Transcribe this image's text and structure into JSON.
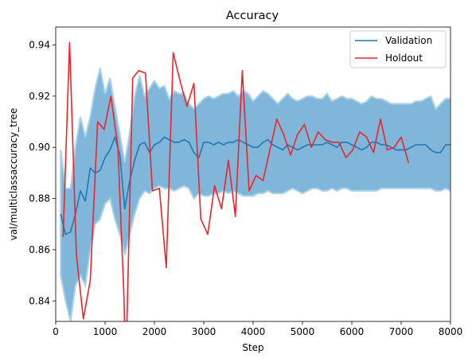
{
  "chart_data": {
    "type": "line",
    "title": "Accuracy",
    "xlabel": "Step",
    "ylabel": "val/multiclassaccuracy_tree",
    "xlim": [
      0,
      8000
    ],
    "ylim": [
      0.832,
      0.947
    ],
    "xticks": [
      0,
      1000,
      2000,
      3000,
      4000,
      5000,
      6000,
      7000,
      8000
    ],
    "xtick_labels": [
      "0",
      "1000",
      "2000",
      "3000",
      "4000",
      "5000",
      "6000",
      "7000",
      "8000"
    ],
    "yticks": [
      0.84,
      0.86,
      0.88,
      0.9,
      0.92,
      0.94
    ],
    "ytick_labels": [
      "0.84",
      "0.86",
      "0.88",
      "0.90",
      "0.92",
      "0.94"
    ],
    "grid": false,
    "legend_position": "top-right",
    "colors": {
      "validation": "#1f77b4",
      "holdout": "#e8262b",
      "band_fill": "#80b6d9",
      "band_edge": "#a9d3e6"
    },
    "band": {
      "x": [
        100,
        200,
        300,
        400,
        500,
        600,
        700,
        800,
        900,
        1000,
        1100,
        1200,
        1300,
        1400,
        1500,
        1600,
        1700,
        1800,
        1900,
        2000,
        2100,
        2200,
        2300,
        2400,
        2500,
        2600,
        2700,
        2800,
        2900,
        3000,
        3100,
        3200,
        3300,
        3400,
        3500,
        3600,
        3700,
        3800,
        3900,
        4000,
        4100,
        4200,
        4300,
        4400,
        4500,
        4600,
        4700,
        4800,
        4900,
        5000,
        5100,
        5200,
        5300,
        5400,
        5500,
        5600,
        5700,
        5800,
        5900,
        6000,
        6100,
        6200,
        6300,
        6400,
        6500,
        6600,
        6700,
        6800,
        6900,
        7000,
        7100,
        7200,
        7300,
        7400,
        7500,
        7600,
        7700,
        7800,
        7900,
        8000
      ],
      "upper": [
        0.899,
        0.884,
        0.884,
        0.9,
        0.912,
        0.904,
        0.912,
        0.923,
        0.931,
        0.921,
        0.927,
        0.916,
        0.905,
        0.894,
        0.906,
        0.92,
        0.928,
        0.92,
        0.923,
        0.926,
        0.923,
        0.924,
        0.919,
        0.922,
        0.921,
        0.921,
        0.917,
        0.915,
        0.917,
        0.919,
        0.92,
        0.919,
        0.92,
        0.921,
        0.921,
        0.922,
        0.92,
        0.922,
        0.921,
        0.918,
        0.92,
        0.922,
        0.921,
        0.919,
        0.917,
        0.919,
        0.921,
        0.919,
        0.918,
        0.919,
        0.92,
        0.92,
        0.919,
        0.919,
        0.921,
        0.918,
        0.919,
        0.92,
        0.919,
        0.919,
        0.918,
        0.917,
        0.918,
        0.92,
        0.919,
        0.919,
        0.918,
        0.917,
        0.917,
        0.917,
        0.917,
        0.917,
        0.918,
        0.918,
        0.919,
        0.92,
        0.915,
        0.917,
        0.919,
        0.919
      ],
      "lower": [
        0.85,
        0.84,
        0.832,
        0.846,
        0.85,
        0.846,
        0.86,
        0.87,
        0.872,
        0.878,
        0.88,
        0.872,
        0.866,
        0.858,
        0.866,
        0.874,
        0.88,
        0.883,
        0.882,
        0.884,
        0.885,
        0.884,
        0.884,
        0.883,
        0.884,
        0.885,
        0.884,
        0.88,
        0.882,
        0.881,
        0.881,
        0.882,
        0.882,
        0.883,
        0.882,
        0.883,
        0.882,
        0.881,
        0.881,
        0.881,
        0.882,
        0.882,
        0.883,
        0.882,
        0.882,
        0.882,
        0.883,
        0.884,
        0.883,
        0.882,
        0.883,
        0.884,
        0.884,
        0.883,
        0.883,
        0.884,
        0.883,
        0.884,
        0.884,
        0.883,
        0.883,
        0.883,
        0.883,
        0.883,
        0.883,
        0.884,
        0.884,
        0.884,
        0.884,
        0.884,
        0.884,
        0.884,
        0.884,
        0.884,
        0.884,
        0.884,
        0.883,
        0.883,
        0.884,
        0.883
      ]
    },
    "series": [
      {
        "name": "Validation",
        "x": [
          100,
          200,
          300,
          400,
          500,
          600,
          700,
          800,
          900,
          1000,
          1100,
          1200,
          1300,
          1400,
          1500,
          1600,
          1700,
          1800,
          1900,
          2000,
          2100,
          2200,
          2300,
          2400,
          2500,
          2600,
          2700,
          2800,
          2900,
          3000,
          3100,
          3200,
          3300,
          3400,
          3500,
          3600,
          3700,
          3800,
          3900,
          4000,
          4100,
          4200,
          4300,
          4400,
          4500,
          4600,
          4700,
          4800,
          4900,
          5000,
          5100,
          5200,
          5300,
          5400,
          5500,
          5600,
          5700,
          5800,
          5900,
          6000,
          6100,
          6200,
          6300,
          6400,
          6500,
          6600,
          6700,
          6800,
          6900,
          7000,
          7100,
          7200,
          7300,
          7400,
          7500,
          7600,
          7700,
          7800,
          7900,
          8000
        ],
        "values": [
          0.874,
          0.866,
          0.867,
          0.874,
          0.883,
          0.879,
          0.892,
          0.89,
          0.891,
          0.896,
          0.899,
          0.904,
          0.897,
          0.876,
          0.887,
          0.895,
          0.901,
          0.902,
          0.898,
          0.901,
          0.902,
          0.904,
          0.903,
          0.902,
          0.902,
          0.903,
          0.902,
          0.898,
          0.896,
          0.902,
          0.902,
          0.901,
          0.902,
          0.901,
          0.902,
          0.902,
          0.903,
          0.902,
          0.901,
          0.9,
          0.9,
          0.902,
          0.903,
          0.901,
          0.9,
          0.899,
          0.901,
          0.9,
          0.899,
          0.9,
          0.901,
          0.901,
          0.901,
          0.901,
          0.902,
          0.901,
          0.9,
          0.902,
          0.902,
          0.901,
          0.9,
          0.899,
          0.9,
          0.902,
          0.902,
          0.901,
          0.901,
          0.9,
          0.899,
          0.899,
          0.899,
          0.9,
          0.901,
          0.901,
          0.901,
          0.899,
          0.898,
          0.898,
          0.901,
          0.901
        ]
      },
      {
        "name": "Holdout",
        "x": [
          150,
          280,
          420,
          560,
          700,
          850,
          980,
          1120,
          1260,
          1380,
          1420,
          1560,
          1680,
          1820,
          1960,
          2100,
          2240,
          2380,
          2520,
          2660,
          2800,
          2940,
          3080,
          3220,
          3360,
          3500,
          3640,
          3780,
          3920,
          4060,
          4200,
          4340,
          4480,
          4620,
          4760,
          4900,
          5040,
          5180,
          5320,
          5460,
          5600,
          5740,
          5880,
          6020,
          6160,
          6300,
          6440,
          6580,
          6720,
          6860,
          7000,
          7150
        ],
        "values": [
          0.865,
          0.941,
          0.858,
          0.833,
          0.848,
          0.91,
          0.907,
          0.92,
          0.9,
          0.843,
          0.812,
          0.927,
          0.93,
          0.929,
          0.883,
          0.884,
          0.853,
          0.937,
          0.926,
          0.916,
          0.925,
          0.872,
          0.866,
          0.885,
          0.876,
          0.895,
          0.873,
          0.93,
          0.883,
          0.889,
          0.887,
          0.899,
          0.911,
          0.905,
          0.897,
          0.905,
          0.909,
          0.9,
          0.906,
          0.903,
          0.902,
          0.902,
          0.896,
          0.899,
          0.906,
          0.904,
          0.898,
          0.911,
          0.899,
          0.9,
          0.904,
          0.894
        ]
      }
    ]
  }
}
